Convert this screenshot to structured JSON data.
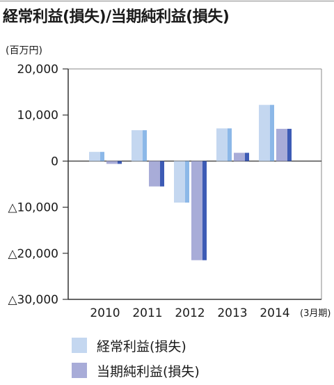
{
  "chart_data": {
    "type": "bar",
    "title": "経常利益(損失)/当期純利益(損失)",
    "unit": "(百万円)",
    "x_suffix": "(3月期)",
    "categories": [
      "2010",
      "2011",
      "2012",
      "2013",
      "2014"
    ],
    "series": [
      {
        "name": "経常利益(損失)",
        "values": [
          2000,
          6700,
          -9000,
          7100,
          12200
        ],
        "color": "#c4d7f0",
        "shade": "#8cb8e8"
      },
      {
        "name": "当期純利益(損失)",
        "values": [
          -600,
          -5500,
          -21500,
          1800,
          7000
        ],
        "color": "#a8acd8",
        "shade": "#3d5bb5"
      }
    ],
    "ylim": [
      -30000,
      20000
    ],
    "yticks": [
      {
        "value": 20000,
        "label": "20,000"
      },
      {
        "value": 10000,
        "label": "10,000"
      },
      {
        "value": 0,
        "label": "0"
      },
      {
        "value": -10000,
        "label": "△10,000"
      },
      {
        "value": -20000,
        "label": "△20,000"
      },
      {
        "value": -30000,
        "label": "△30,000"
      }
    ],
    "grid": false,
    "legend_position": "bottom"
  }
}
